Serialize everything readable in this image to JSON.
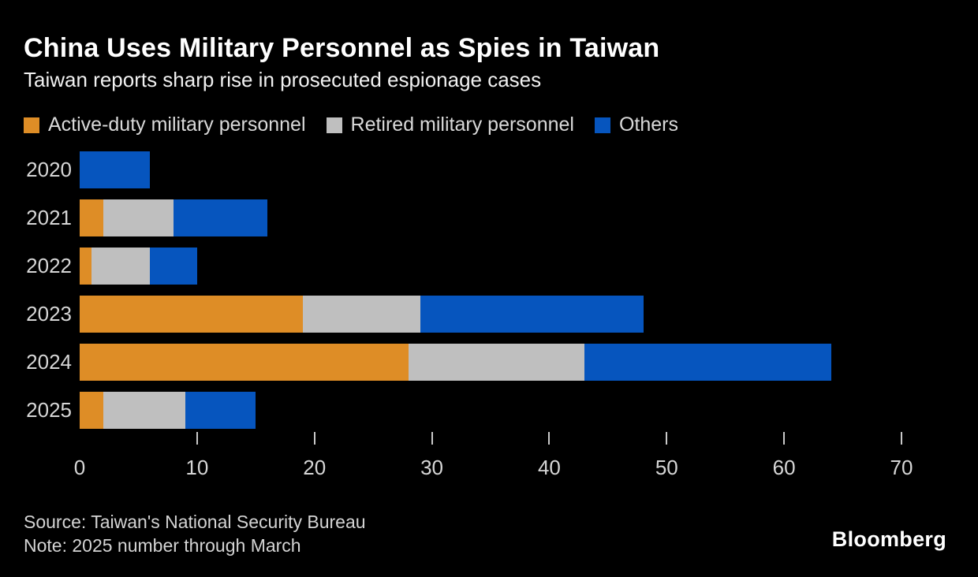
{
  "title": "China Uses Military Personnel as Spies in Taiwan",
  "subtitle": "Taiwan reports sharp rise in prosecuted espionage cases",
  "source": "Source: Taiwan's National Security Bureau",
  "note": "Note: 2025 number through March",
  "brand": "Bloomberg",
  "colors": {
    "background": "#000000",
    "active_duty": "#DE8D26",
    "retired": "#BFBFBF",
    "others": "#0655BE",
    "text_primary": "#FFFFFF",
    "text_secondary": "#D6D6D6"
  },
  "chart_data": {
    "type": "bar",
    "orientation": "horizontal",
    "stacked": true,
    "title": "China Uses Military Personnel as Spies in Taiwan",
    "subtitle": "Taiwan reports sharp rise in prosecuted espionage cases",
    "categories": [
      "2020",
      "2021",
      "2022",
      "2023",
      "2024",
      "2025"
    ],
    "series": [
      {
        "name": "Active-duty military personnel",
        "color": "#DE8D26",
        "values": [
          0,
          2,
          1,
          19,
          28,
          2
        ]
      },
      {
        "name": "Retired military personnel",
        "color": "#BFBFBF",
        "values": [
          0,
          6,
          5,
          10,
          15,
          7
        ]
      },
      {
        "name": "Others",
        "color": "#0655BE",
        "values": [
          6,
          8,
          4,
          19,
          21,
          6
        ]
      }
    ],
    "totals": [
      6,
      16,
      10,
      48,
      64,
      15
    ],
    "xlabel": "",
    "ylabel": "",
    "xlim": [
      0,
      70
    ],
    "x_tick_labels": [
      0,
      10,
      20,
      30,
      40,
      50,
      60,
      70
    ],
    "x_tick_marks": [
      10,
      20,
      30,
      40,
      50,
      60,
      70
    ],
    "grid": false,
    "legend_position": "top"
  }
}
